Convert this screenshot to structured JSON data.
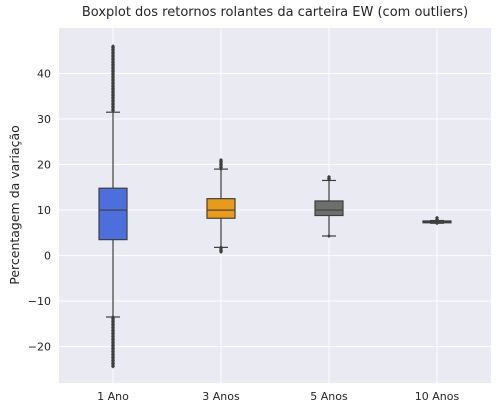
{
  "chart_data": {
    "type": "boxplot",
    "title": "Boxplot dos retornos rolantes da carteira EW (com outliers)",
    "xlabel": "",
    "ylabel": "Percentagem da variação",
    "ylim": [
      -28,
      50
    ],
    "yticks": [
      -20,
      -10,
      0,
      10,
      20,
      30,
      40
    ],
    "grid": true,
    "categories": [
      "1 Ano",
      "3 Anos",
      "5 Anos",
      "10 Anos"
    ],
    "boxes": [
      {
        "category": "1 Ano",
        "whisker_low": -13.5,
        "q1": 3.5,
        "median": 10.0,
        "q3": 14.8,
        "whisker_high": 31.5,
        "outliers_low_range": [
          -24.5,
          -13.5
        ],
        "outliers_high_range": [
          31.5,
          46.0
        ],
        "color": "#4c6fdb"
      },
      {
        "category": "3 Anos",
        "whisker_low": 1.8,
        "q1": 8.2,
        "median": 10.0,
        "q3": 12.5,
        "whisker_high": 19.0,
        "outliers_low_range": [
          0.5,
          1.8
        ],
        "outliers_high_range": [
          19.0,
          21.0
        ],
        "color": "#e89b1a"
      },
      {
        "category": "5 Anos",
        "whisker_low": 4.3,
        "q1": 8.8,
        "median": 10.0,
        "q3": 12.0,
        "whisker_high": 16.5,
        "outliers_low_range": [
          4.0,
          4.3
        ],
        "outliers_high_range": [
          16.5,
          17.3
        ],
        "color": "#6e6e6e"
      },
      {
        "category": "10 Anos",
        "whisker_low": 7.1,
        "q1": 7.2,
        "median": 7.4,
        "q3": 7.6,
        "whisker_high": 7.7,
        "outliers_low_range": [
          7.0,
          7.1
        ],
        "outliers_high_range": [
          7.7,
          8.3
        ],
        "color": "#cccccc"
      }
    ],
    "background_color": "#eaeaf2",
    "grid_color": "#ffffff",
    "line_color": "#3f3f3f"
  }
}
